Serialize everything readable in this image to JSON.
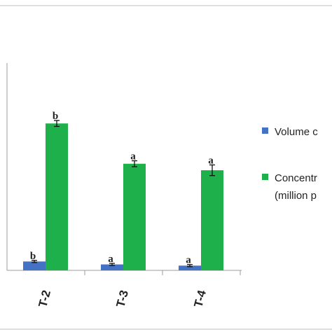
{
  "chart_data": {
    "type": "bar",
    "categories": [
      "T-2",
      "T-3",
      "T-4"
    ],
    "series": [
      {
        "name": "Volume c",
        "color": "#4472c4",
        "values": [
          1.5,
          1.0,
          0.8
        ],
        "error": [
          0.05,
          0.05,
          0.05
        ],
        "significance": [
          "b",
          "a",
          "a"
        ]
      },
      {
        "name": "Concentr",
        "name_line2": "(million p",
        "color": "#1eb04a",
        "values": [
          24.8,
          18.0,
          16.9
        ],
        "error": [
          0.5,
          0.5,
          0.9
        ],
        "significance": [
          "b",
          "a",
          "a"
        ]
      }
    ],
    "ylim": [
      0,
      35
    ],
    "grid": false,
    "legend_position": "right"
  }
}
